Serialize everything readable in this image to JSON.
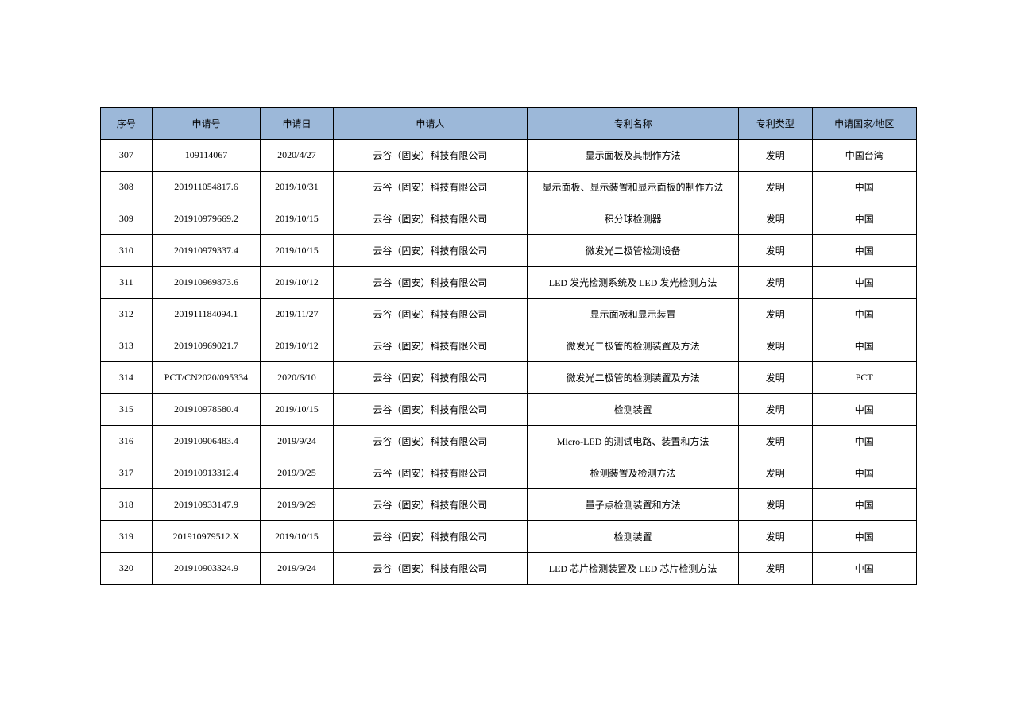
{
  "table": {
    "header_bg": "#9cb8d9",
    "border_color": "#000000",
    "font_family": "SimSun",
    "font_size_pt": 9,
    "columns": [
      {
        "key": "seq",
        "label": "序号",
        "width_pct": 6.3
      },
      {
        "key": "appno",
        "label": "申请号",
        "width_pct": 13.3
      },
      {
        "key": "date",
        "label": "申请日",
        "width_pct": 8.9
      },
      {
        "key": "appl",
        "label": "申请人",
        "width_pct": 23.8
      },
      {
        "key": "name",
        "label": "专利名称",
        "width_pct": 25.9
      },
      {
        "key": "type",
        "label": "专利类型",
        "width_pct": 9.0
      },
      {
        "key": "ctry",
        "label": "申请国家/地区",
        "width_pct": 12.8
      }
    ],
    "rows": [
      {
        "seq": "307",
        "appno": "109114067",
        "date": "2020/4/27",
        "appl": "云谷（固安）科技有限公司",
        "name": "显示面板及其制作方法",
        "type": "发明",
        "ctry": "中国台湾"
      },
      {
        "seq": "308",
        "appno": "201911054817.6",
        "date": "2019/10/31",
        "appl": "云谷（固安）科技有限公司",
        "name": "显示面板、显示装置和显示面板的制作方法",
        "type": "发明",
        "ctry": "中国"
      },
      {
        "seq": "309",
        "appno": "201910979669.2",
        "date": "2019/10/15",
        "appl": "云谷（固安）科技有限公司",
        "name": "积分球检测器",
        "type": "发明",
        "ctry": "中国"
      },
      {
        "seq": "310",
        "appno": "201910979337.4",
        "date": "2019/10/15",
        "appl": "云谷（固安）科技有限公司",
        "name": "微发光二极管检测设备",
        "type": "发明",
        "ctry": "中国"
      },
      {
        "seq": "311",
        "appno": "201910969873.6",
        "date": "2019/10/12",
        "appl": "云谷（固安）科技有限公司",
        "name": "LED 发光检测系统及 LED 发光检测方法",
        "type": "发明",
        "ctry": "中国"
      },
      {
        "seq": "312",
        "appno": "201911184094.1",
        "date": "2019/11/27",
        "appl": "云谷（固安）科技有限公司",
        "name": "显示面板和显示装置",
        "type": "发明",
        "ctry": "中国"
      },
      {
        "seq": "313",
        "appno": "201910969021.7",
        "date": "2019/10/12",
        "appl": "云谷（固安）科技有限公司",
        "name": "微发光二极管的检测装置及方法",
        "type": "发明",
        "ctry": "中国"
      },
      {
        "seq": "314",
        "appno": "PCT/CN2020/095334",
        "date": "2020/6/10",
        "appl": "云谷（固安）科技有限公司",
        "name": "微发光二极管的检测装置及方法",
        "type": "发明",
        "ctry": "PCT"
      },
      {
        "seq": "315",
        "appno": "201910978580.4",
        "date": "2019/10/15",
        "appl": "云谷（固安）科技有限公司",
        "name": "检测装置",
        "type": "发明",
        "ctry": "中国"
      },
      {
        "seq": "316",
        "appno": "201910906483.4",
        "date": "2019/9/24",
        "appl": "云谷（固安）科技有限公司",
        "name": "Micro-LED 的测试电路、装置和方法",
        "type": "发明",
        "ctry": "中国"
      },
      {
        "seq": "317",
        "appno": "201910913312.4",
        "date": "2019/9/25",
        "appl": "云谷（固安）科技有限公司",
        "name": "检测装置及检测方法",
        "type": "发明",
        "ctry": "中国"
      },
      {
        "seq": "318",
        "appno": "201910933147.9",
        "date": "2019/9/29",
        "appl": "云谷（固安）科技有限公司",
        "name": "量子点检测装置和方法",
        "type": "发明",
        "ctry": "中国"
      },
      {
        "seq": "319",
        "appno": "201910979512.X",
        "date": "2019/10/15",
        "appl": "云谷（固安）科技有限公司",
        "name": "检测装置",
        "type": "发明",
        "ctry": "中国"
      },
      {
        "seq": "320",
        "appno": "201910903324.9",
        "date": "2019/9/24",
        "appl": "云谷（固安）科技有限公司",
        "name": "LED 芯片检测装置及 LED 芯片检测方法",
        "type": "发明",
        "ctry": "中国"
      }
    ]
  }
}
